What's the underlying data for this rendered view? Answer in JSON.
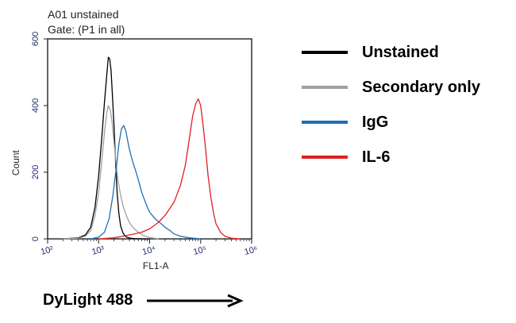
{
  "header": {
    "sample": "A01 unstained",
    "gate": "Gate: (P1 in all)"
  },
  "legend": {
    "items": [
      {
        "label": "Unstained",
        "color": "#000000"
      },
      {
        "label": "Secondary only",
        "color": "#a0a0a0"
      },
      {
        "label": "IgG",
        "color": "#1f6fb5"
      },
      {
        "label": "IL-6",
        "color": "#e02020"
      }
    ]
  },
  "caption": {
    "text": "DyLight 488"
  },
  "chart_data": {
    "type": "line",
    "xlabel": "FL1-A",
    "ylabel": "Count",
    "xscale": "log",
    "xlim": [
      100,
      1000000
    ],
    "ylim": [
      0,
      600
    ],
    "xticks": [
      100,
      1000,
      10000,
      100000,
      1000000
    ],
    "xtick_labels": [
      "10²",
      "10³",
      "10⁴",
      "10⁵",
      "10⁶"
    ],
    "yticks": [
      0,
      200,
      400,
      600
    ],
    "ytick_labels": [
      "0",
      "200",
      "400",
      "600"
    ],
    "grid": false,
    "series": [
      {
        "name": "Unstained",
        "color": "#000000",
        "x": [
          200,
          400,
          550,
          700,
          850,
          1000,
          1150,
          1300,
          1450,
          1550,
          1650,
          1750,
          1850,
          2000,
          2150,
          2300,
          2500,
          2700,
          3000,
          3300,
          3700,
          4200,
          5000,
          7000,
          10000
        ],
        "y": [
          0,
          3,
          12,
          35,
          95,
          190,
          300,
          410,
          495,
          545,
          540,
          505,
          440,
          340,
          230,
          140,
          75,
          38,
          18,
          8,
          4,
          2,
          1,
          0,
          0
        ]
      },
      {
        "name": "Secondary only",
        "color": "#a0a0a0",
        "x": [
          200,
          400,
          550,
          700,
          850,
          1000,
          1150,
          1300,
          1450,
          1550,
          1700,
          1850,
          2000,
          2200,
          2400,
          2600,
          2800,
          3000,
          3300,
          3600,
          4000,
          4500,
          5000,
          6000,
          7500,
          10000,
          15000
        ],
        "y": [
          0,
          2,
          8,
          25,
          70,
          140,
          230,
          320,
          380,
          400,
          385,
          345,
          290,
          225,
          175,
          145,
          120,
          100,
          80,
          65,
          50,
          38,
          30,
          20,
          10,
          4,
          0
        ]
      },
      {
        "name": "IgG",
        "color": "#1f6fb5",
        "x": [
          700,
          1000,
          1300,
          1600,
          1900,
          2200,
          2500,
          2800,
          3100,
          3400,
          3700,
          4000,
          4400,
          4800,
          5300,
          5800,
          6300,
          7000,
          8000,
          9000,
          10000,
          12000,
          14000,
          17000,
          20000,
          25000,
          30000,
          40000,
          60000,
          100000
        ],
        "y": [
          0,
          5,
          20,
          60,
          130,
          210,
          285,
          330,
          340,
          325,
          295,
          270,
          245,
          225,
          205,
          185,
          165,
          140,
          115,
          95,
          80,
          65,
          55,
          45,
          35,
          25,
          15,
          8,
          3,
          0
        ]
      },
      {
        "name": "IL-6",
        "color": "#e02020",
        "x": [
          1000,
          2000,
          3000,
          4000,
          5000,
          7000,
          10000,
          15000,
          20000,
          30000,
          40000,
          50000,
          60000,
          70000,
          80000,
          90000,
          100000,
          110000,
          125000,
          140000,
          160000,
          180000,
          200000,
          250000,
          300000,
          400000,
          600000
        ],
        "y": [
          0,
          3,
          8,
          12,
          15,
          20,
          30,
          50,
          70,
          110,
          160,
          220,
          300,
          370,
          405,
          420,
          400,
          350,
          270,
          190,
          120,
          75,
          45,
          18,
          8,
          2,
          0
        ]
      }
    ]
  }
}
